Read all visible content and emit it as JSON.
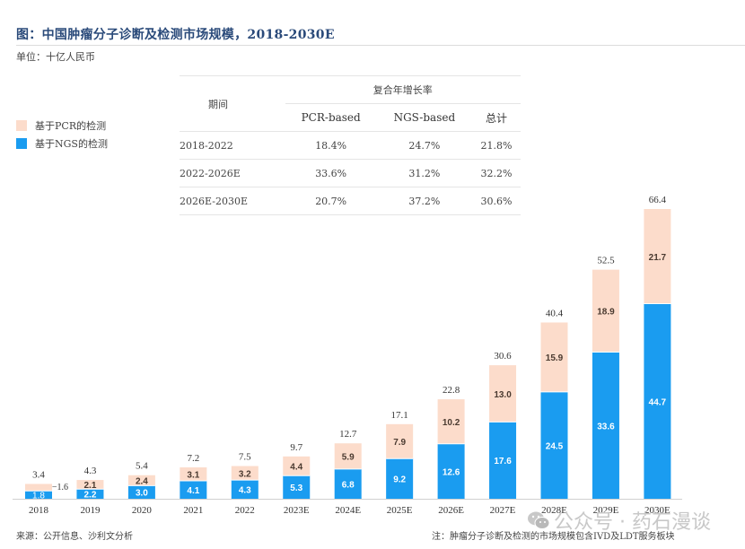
{
  "header": {
    "title": "图：中国肿瘤分子诊断及检测市场规模，2018-2030E",
    "unit": "单位：十亿人民币"
  },
  "legend": [
    {
      "label": "基于PCR的检测",
      "color": "#fcdccb"
    },
    {
      "label": "基于NGS的检测",
      "color": "#1a9cf0"
    }
  ],
  "cagr_table": {
    "group_header": "复合年增长率",
    "period_header": "期间",
    "columns": [
      "PCR-based",
      "NGS-based",
      "总计"
    ],
    "rows": [
      {
        "period": "2018-2022",
        "values": [
          "18.4%",
          "24.7%",
          "21.8%"
        ]
      },
      {
        "period": "2022-2026E",
        "values": [
          "33.6%",
          "31.2%",
          "32.2%"
        ]
      },
      {
        "period": "2026E-2030E",
        "values": [
          "20.7%",
          "37.2%",
          "30.6%"
        ]
      }
    ]
  },
  "chart_data": {
    "type": "bar",
    "stacked": true,
    "title": "中国肿瘤分子诊断及检测市场规模，2018-2030E",
    "ylabel": "十亿人民币",
    "xlabel": "",
    "categories": [
      "2018",
      "2019",
      "2020",
      "2021",
      "2022",
      "2023E",
      "2024E",
      "2025E",
      "2026E",
      "2027E",
      "2028E",
      "2029E",
      "2030E"
    ],
    "series": [
      {
        "name": "基于NGS的检测",
        "color": "#1a9cf0",
        "values": [
          1.8,
          2.2,
          3.0,
          4.1,
          4.3,
          5.3,
          6.8,
          9.2,
          12.6,
          17.6,
          24.5,
          33.6,
          44.7
        ]
      },
      {
        "name": "基于PCR的检测",
        "color": "#fcdccb",
        "values": [
          1.6,
          2.1,
          2.4,
          3.1,
          3.2,
          4.4,
          5.9,
          7.9,
          10.2,
          13.0,
          15.9,
          18.9,
          21.7
        ]
      }
    ],
    "totals": [
      3.4,
      4.3,
      5.4,
      7.2,
      7.5,
      9.7,
      12.7,
      17.1,
      22.8,
      30.6,
      40.4,
      52.5,
      66.4
    ],
    "ylim": [
      0,
      66.4
    ],
    "grid": false,
    "legend_position": "top-left"
  },
  "footer": {
    "source": "来源：公开信息、沙利文分析",
    "note": "注：肿瘤分子诊断及检测的市场规模包含IVD及LDT服务板块",
    "watermark": "公众号 · 药石漫谈"
  }
}
